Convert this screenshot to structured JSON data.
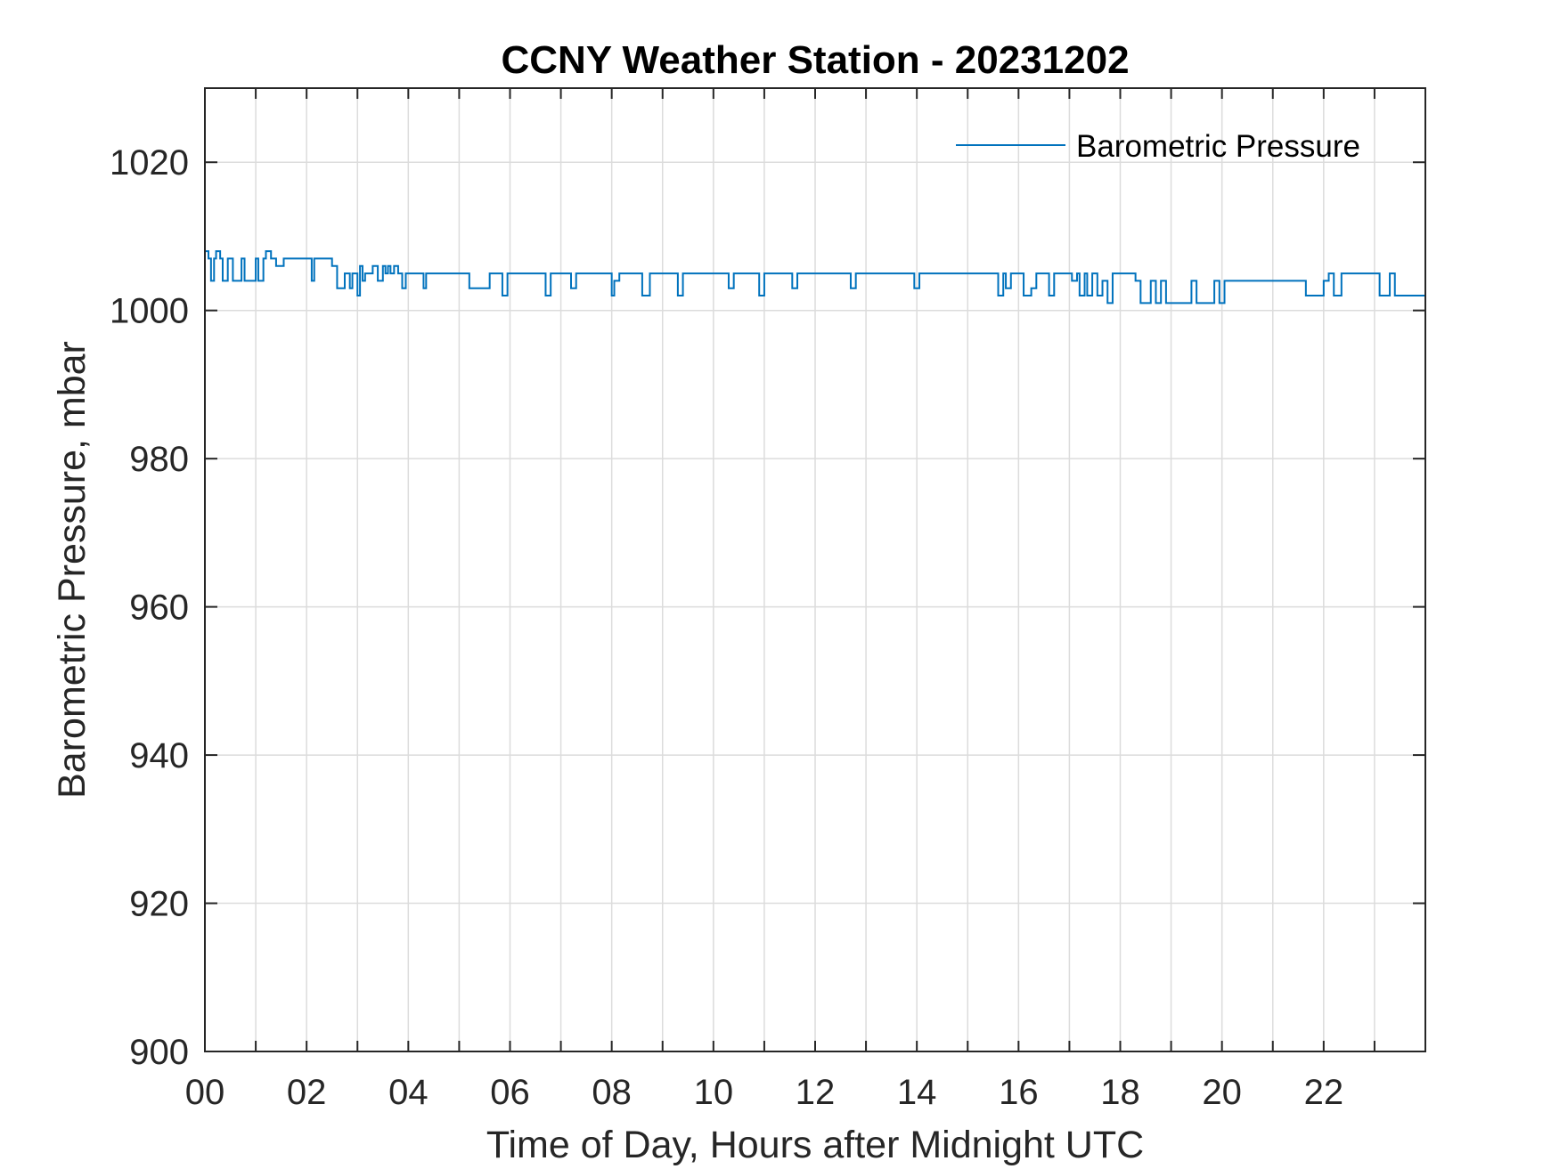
{
  "chart_data": {
    "type": "line",
    "title": "CCNY Weather Station - 20231202",
    "xlabel": "Time of Day, Hours after Midnight UTC",
    "ylabel": "Barometric Pressure, mbar",
    "xlim": [
      0,
      24
    ],
    "ylim": [
      900,
      1030
    ],
    "x_ticks": [
      0,
      2,
      4,
      6,
      8,
      10,
      12,
      14,
      16,
      18,
      20,
      22
    ],
    "x_tick_labels": [
      "00",
      "02",
      "04",
      "06",
      "08",
      "10",
      "12",
      "14",
      "16",
      "18",
      "20",
      "22"
    ],
    "x_minor_grid_step": 1,
    "y_ticks": [
      900,
      920,
      940,
      960,
      980,
      1000,
      1020
    ],
    "y_tick_labels": [
      "900",
      "920",
      "940",
      "960",
      "980",
      "1000",
      "1020"
    ],
    "grid": true,
    "legend_position": "top-right",
    "series": [
      {
        "name": "Barometric Pressure",
        "color": "#0072BD",
        "step": true,
        "x": [
          0,
          0.07,
          0.12,
          0.18,
          0.22,
          0.3,
          0.35,
          0.45,
          0.55,
          0.62,
          0.68,
          0.72,
          0.78,
          1.0,
          1.05,
          1.15,
          1.2,
          1.3,
          1.4,
          1.55,
          1.6,
          1.65,
          2.1,
          2.15,
          2.5,
          2.6,
          2.75,
          2.85,
          2.9,
          3.0,
          3.05,
          3.1,
          3.15,
          3.3,
          3.4,
          3.5,
          3.55,
          3.6,
          3.65,
          3.72,
          3.8,
          3.88,
          3.95,
          4.3,
          4.35,
          5.2,
          5.3,
          5.6,
          5.85,
          5.95,
          6.7,
          6.8,
          7.2,
          7.3,
          8.0,
          8.05,
          8.15,
          8.6,
          8.75,
          9.3,
          9.4,
          10.3,
          10.4,
          10.9,
          11.0,
          11.55,
          11.65,
          12.7,
          12.8,
          13.95,
          14.05,
          15.6,
          15.7,
          15.75,
          15.85,
          16.1,
          16.25,
          16.35,
          16.6,
          16.7,
          17.05,
          17.15,
          17.2,
          17.3,
          17.35,
          17.45,
          17.55,
          17.65,
          17.75,
          17.85,
          18.3,
          18.4,
          18.6,
          18.7,
          18.8,
          18.9,
          19.4,
          19.5,
          19.85,
          19.95,
          20.05,
          21.55,
          21.65,
          22.0,
          22.1,
          22.2,
          22.35,
          22.9,
          23.1,
          23.3,
          23.4,
          24.0
        ],
        "values": [
          1008,
          1007,
          1004,
          1007,
          1008,
          1007,
          1004,
          1007,
          1004,
          1004,
          1004,
          1007,
          1004,
          1007,
          1004,
          1007,
          1008,
          1007,
          1006,
          1007,
          1007,
          1007,
          1004,
          1007,
          1006,
          1003,
          1005,
          1003,
          1005,
          1002,
          1006,
          1004,
          1005,
          1006,
          1004,
          1006,
          1005,
          1006,
          1005,
          1006,
          1005,
          1003,
          1005,
          1003,
          1005,
          1003,
          1003,
          1005,
          1002,
          1005,
          1002,
          1005,
          1003,
          1005,
          1002,
          1004,
          1005,
          1002,
          1005,
          1002,
          1005,
          1003,
          1005,
          1002,
          1005,
          1003,
          1005,
          1003,
          1005,
          1003,
          1005,
          1002,
          1005,
          1003,
          1005,
          1002,
          1003,
          1005,
          1002,
          1005,
          1004,
          1005,
          1002,
          1005,
          1002,
          1005,
          1002,
          1004,
          1001,
          1005,
          1004,
          1001,
          1004,
          1001,
          1004,
          1001,
          1004,
          1001,
          1004,
          1001,
          1004,
          1004,
          1002,
          1004,
          1005,
          1002,
          1005,
          1005,
          1002,
          1005,
          1002,
          1005
        ]
      }
    ]
  }
}
